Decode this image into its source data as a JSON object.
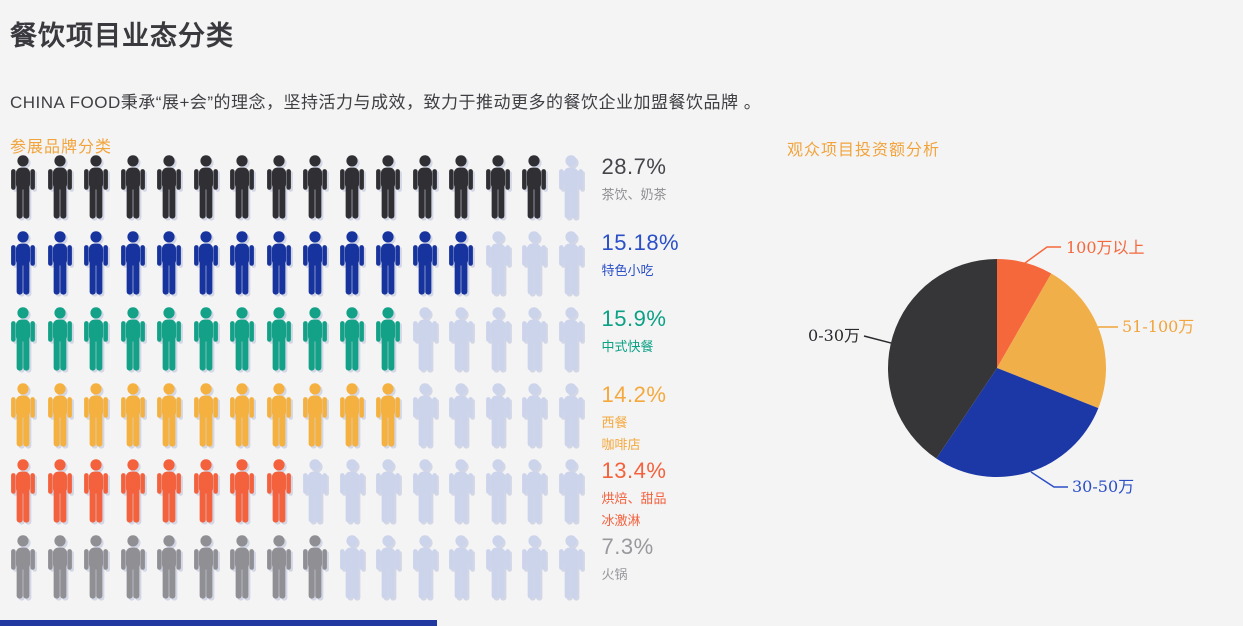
{
  "page": {
    "title": "餐饮项目业态分类",
    "subtitle": "CHINA FOOD秉承“展+会”的理念，坚持活力与成效，致力于推动更多的餐饮企业加盟餐饮品牌 。",
    "background_color": "#f4f4f5",
    "accent_color": "#f2a43c"
  },
  "chart_data": [
    {
      "type": "pictograph",
      "title": "参展品牌分类",
      "units_per_row": 16,
      "placeholder_color": "#ccd4ec",
      "rows": [
        {
          "value": "28.7%",
          "category_lines": [
            "茶饮、奶茶"
          ],
          "filled_units": 15,
          "icon_color": "#303034",
          "value_color": "#45454a",
          "category_color": "#8e8e92"
        },
        {
          "value": "15.18%",
          "category_lines": [
            "特色小吃"
          ],
          "filled_units": 13,
          "icon_color": "#17339e",
          "value_color": "#2b4fc6",
          "category_color": "#2b4fc6"
        },
        {
          "value": "15.9%",
          "category_lines": [
            "中式快餐"
          ],
          "filled_units": 11,
          "icon_color": "#13a287",
          "value_color": "#0ca084",
          "category_color": "#0ca084"
        },
        {
          "value": "14.2%",
          "category_lines": [
            "西餐",
            "咖啡店"
          ],
          "filled_units": 11,
          "icon_color": "#f5b140",
          "value_color": "#f5a93c",
          "category_color": "#f5a93c"
        },
        {
          "value": "13.4%",
          "category_lines": [
            "烘焙、甜品",
            "冰激淋"
          ],
          "filled_units": 8,
          "icon_color": "#f4613d",
          "value_color": "#f4613d",
          "category_color": "#f4613d"
        },
        {
          "value": "7.3%",
          "category_lines": [
            "火锅"
          ],
          "filled_units": 9,
          "icon_color": "#8f8f94",
          "value_color": "#99999d",
          "category_color": "#99999d"
        }
      ]
    },
    {
      "type": "pie",
      "title": "观众项目投资额分析",
      "start": "top",
      "direction": "clockwise",
      "slices": [
        {
          "label": "100万以上",
          "percent": 8.3,
          "color": "#f4683c",
          "label_color": "#f4683c"
        },
        {
          "label": "51-100万",
          "percent": 22.7,
          "color": "#f1af4a",
          "label_color": "#f2a43c"
        },
        {
          "label": "30-50万",
          "percent": 28.4,
          "color": "#1c38a6",
          "label_color": "#2b4fc6"
        },
        {
          "label": "0-30万",
          "percent": 40.6,
          "color": "#363639",
          "label_color": "#2a2a2e"
        }
      ]
    }
  ]
}
